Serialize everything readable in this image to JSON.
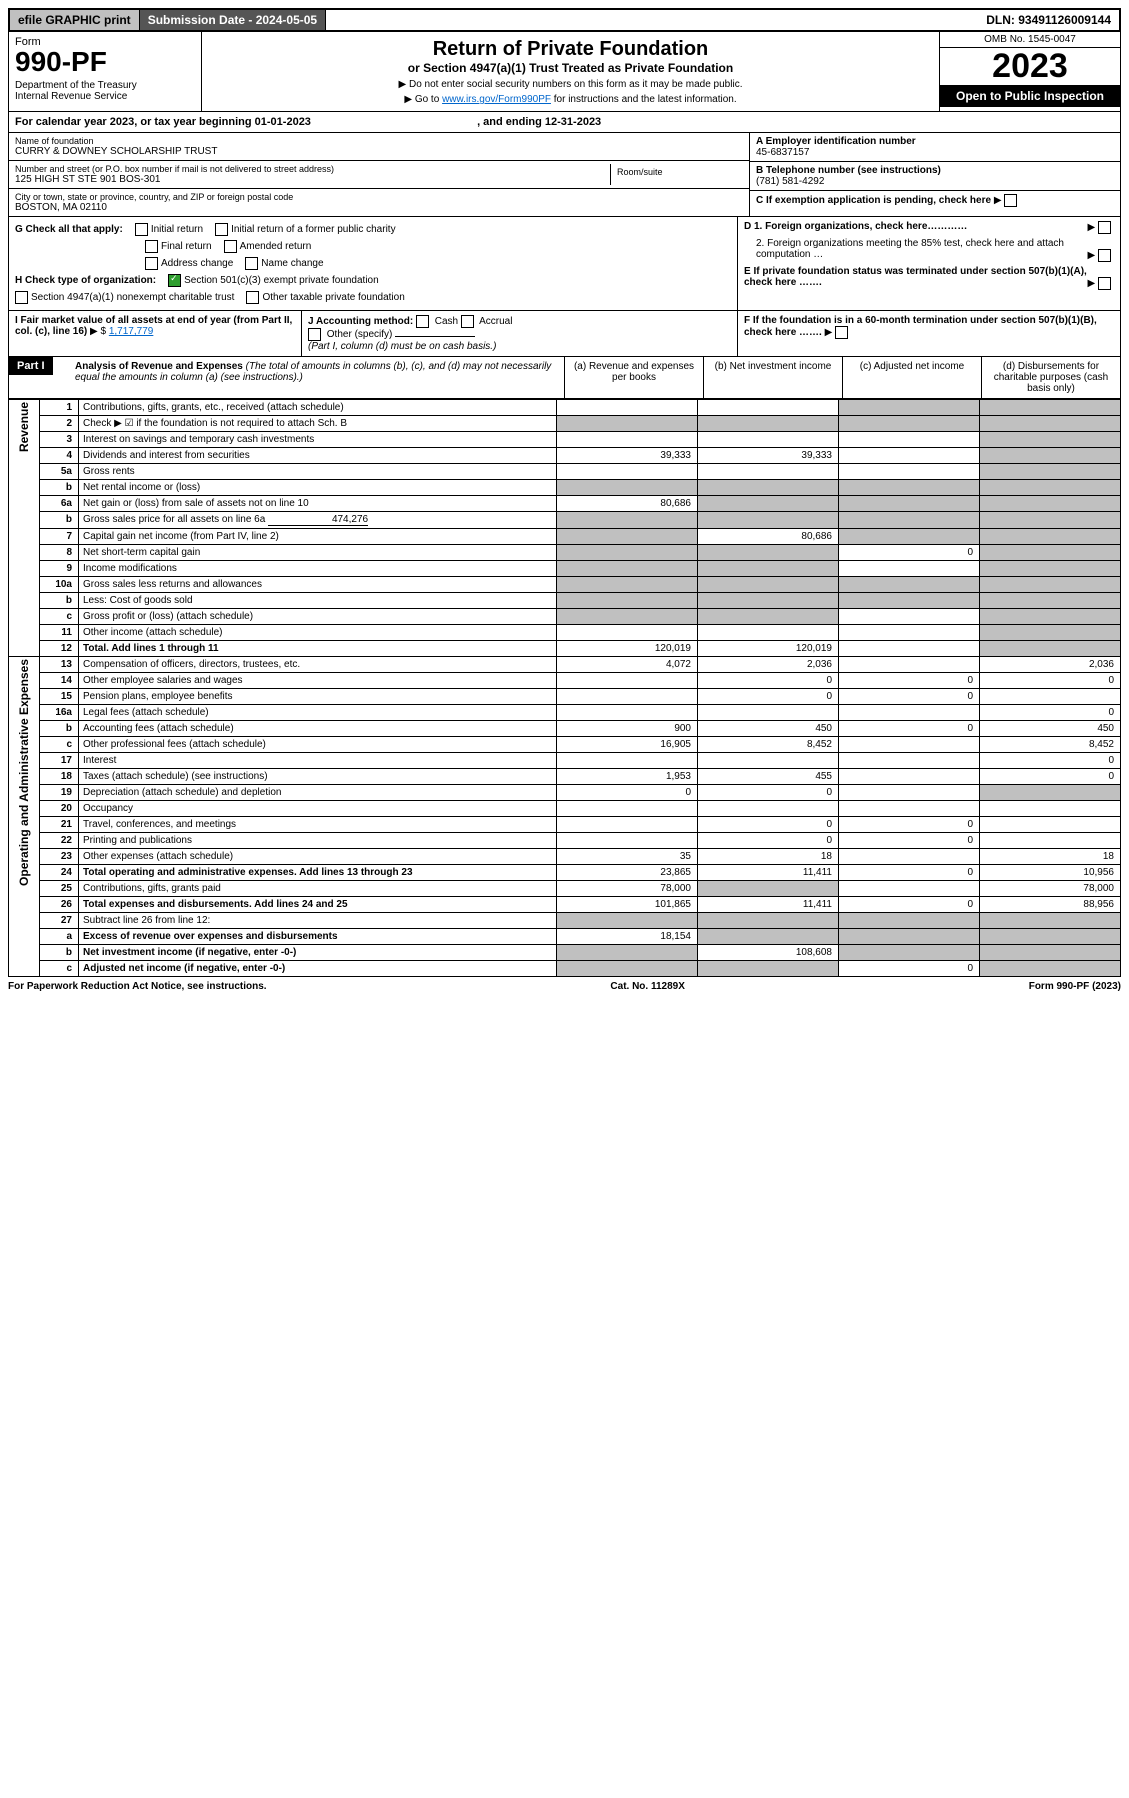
{
  "topbar": {
    "efile": "efile GRAPHIC print",
    "submission_label": "Submission Date - 2024-05-05",
    "dln": "DLN: 93491126009144"
  },
  "header": {
    "form_label": "Form",
    "form_no": "990-PF",
    "dept": "Department of the Treasury\nInternal Revenue Service",
    "title": "Return of Private Foundation",
    "subtitle": "or Section 4947(a)(1) Trust Treated as Private Foundation",
    "instr1": "▶ Do not enter social security numbers on this form as it may be made public.",
    "instr2_pre": "▶ Go to ",
    "instr2_link": "www.irs.gov/Form990PF",
    "instr2_post": " for instructions and the latest information.",
    "omb": "OMB No. 1545-0047",
    "year": "2023",
    "open": "Open to Public Inspection"
  },
  "calendar": {
    "text_pre": "For calendar year 2023, or tax year beginning ",
    "begin": "01-01-2023",
    "text_mid": " , and ending ",
    "end": "12-31-2023"
  },
  "entity": {
    "name_label": "Name of foundation",
    "name": "CURRY & DOWNEY SCHOLARSHIP TRUST",
    "addr_label": "Number and street (or P.O. box number if mail is not delivered to street address)",
    "address": "125 HIGH ST STE 901 BOS-301",
    "room_label": "Room/suite",
    "city_label": "City or town, state or province, country, and ZIP or foreign postal code",
    "city": "BOSTON, MA  02110",
    "ein_label": "A Employer identification number",
    "ein": "45-6837157",
    "phone_label": "B Telephone number (see instructions)",
    "phone": "(781) 581-4292",
    "c_label": "C If exemption application is pending, check here"
  },
  "checks": {
    "g_label": "G Check all that apply:",
    "g_opts": [
      "Initial return",
      "Initial return of a former public charity",
      "Final return",
      "Amended return",
      "Address change",
      "Name change"
    ],
    "h_label": "H Check type of organization:",
    "h_501c3": "Section 501(c)(3) exempt private foundation",
    "h_4947": "Section 4947(a)(1) nonexempt charitable trust",
    "h_other": "Other taxable private foundation",
    "d1": "D 1. Foreign organizations, check here…………",
    "d2": "2. Foreign organizations meeting the 85% test, check here and attach computation …",
    "e": "E  If private foundation status was terminated under section 507(b)(1)(A), check here …….",
    "i_label": "I Fair market value of all assets at end of year (from Part II, col. (c), line 16)",
    "i_value": "1,717,779",
    "j_label": "J Accounting method:",
    "j_cash": "Cash",
    "j_accrual": "Accrual",
    "j_other": "Other (specify)",
    "j_note": "(Part I, column (d) must be on cash basis.)",
    "f_label": "F  If the foundation is in a 60-month termination under section 507(b)(1)(B), check here ……."
  },
  "part1": {
    "hdr": "Part I",
    "title": "Analysis of Revenue and Expenses",
    "title_note": " (The total of amounts in columns (b), (c), and (d) may not necessarily equal the amounts in column (a) (see instructions).)",
    "col_a": "(a)  Revenue and expenses per books",
    "col_b": "(b)  Net investment income",
    "col_c": "(c)  Adjusted net income",
    "col_d": "(d)  Disbursements for charitable purposes (cash basis only)"
  },
  "side_labels": {
    "revenue": "Revenue",
    "opex": "Operating and Administrative Expenses"
  },
  "rows": [
    {
      "no": "1",
      "desc": "Contributions, gifts, grants, etc., received (attach schedule)",
      "a": "",
      "b": "",
      "c": "shade",
      "d": "shade"
    },
    {
      "no": "2",
      "desc": "Check ▶ ☑ if the foundation is not required to attach Sch. B",
      "a": "shade",
      "b": "shade",
      "c": "shade",
      "d": "shade",
      "checked": true
    },
    {
      "no": "3",
      "desc": "Interest on savings and temporary cash investments",
      "a": "",
      "b": "",
      "c": "",
      "d": "shade"
    },
    {
      "no": "4",
      "desc": "Dividends and interest from securities",
      "a": "39,333",
      "b": "39,333",
      "c": "",
      "d": "shade"
    },
    {
      "no": "5a",
      "desc": "Gross rents",
      "a": "",
      "b": "",
      "c": "",
      "d": "shade"
    },
    {
      "no": "b",
      "desc": "Net rental income or (loss)",
      "a": "shade",
      "b": "shade",
      "c": "shade",
      "d": "shade",
      "inline": true
    },
    {
      "no": "6a",
      "desc": "Net gain or (loss) from sale of assets not on line 10",
      "a": "80,686",
      "b": "shade",
      "c": "shade",
      "d": "shade"
    },
    {
      "no": "b",
      "desc": "Gross sales price for all assets on line 6a",
      "a": "shade",
      "b": "shade",
      "c": "shade",
      "d": "shade",
      "inline_val": "474,276"
    },
    {
      "no": "7",
      "desc": "Capital gain net income (from Part IV, line 2)",
      "a": "shade",
      "b": "80,686",
      "c": "shade",
      "d": "shade"
    },
    {
      "no": "8",
      "desc": "Net short-term capital gain",
      "a": "shade",
      "b": "shade",
      "c": "0",
      "d": "shade"
    },
    {
      "no": "9",
      "desc": "Income modifications",
      "a": "shade",
      "b": "shade",
      "c": "",
      "d": "shade"
    },
    {
      "no": "10a",
      "desc": "Gross sales less returns and allowances",
      "a": "shade",
      "b": "shade",
      "c": "shade",
      "d": "shade",
      "inline": true
    },
    {
      "no": "b",
      "desc": "Less: Cost of goods sold",
      "a": "shade",
      "b": "shade",
      "c": "shade",
      "d": "shade",
      "inline": true
    },
    {
      "no": "c",
      "desc": "Gross profit or (loss) (attach schedule)",
      "a": "shade",
      "b": "shade",
      "c": "",
      "d": "shade"
    },
    {
      "no": "11",
      "desc": "Other income (attach schedule)",
      "a": "",
      "b": "",
      "c": "",
      "d": "shade"
    },
    {
      "no": "12",
      "desc": "Total. Add lines 1 through 11",
      "a": "120,019",
      "b": "120,019",
      "c": "",
      "d": "shade",
      "bold": true
    },
    {
      "no": "13",
      "desc": "Compensation of officers, directors, trustees, etc.",
      "a": "4,072",
      "b": "2,036",
      "c": "",
      "d": "2,036"
    },
    {
      "no": "14",
      "desc": "Other employee salaries and wages",
      "a": "",
      "b": "0",
      "c": "0",
      "d": "0"
    },
    {
      "no": "15",
      "desc": "Pension plans, employee benefits",
      "a": "",
      "b": "0",
      "c": "0",
      "d": ""
    },
    {
      "no": "16a",
      "desc": "Legal fees (attach schedule)",
      "a": "",
      "b": "",
      "c": "",
      "d": "0"
    },
    {
      "no": "b",
      "desc": "Accounting fees (attach schedule)",
      "a": "900",
      "b": "450",
      "c": "0",
      "d": "450"
    },
    {
      "no": "c",
      "desc": "Other professional fees (attach schedule)",
      "a": "16,905",
      "b": "8,452",
      "c": "",
      "d": "8,452"
    },
    {
      "no": "17",
      "desc": "Interest",
      "a": "",
      "b": "",
      "c": "",
      "d": "0"
    },
    {
      "no": "18",
      "desc": "Taxes (attach schedule) (see instructions)",
      "a": "1,953",
      "b": "455",
      "c": "",
      "d": "0"
    },
    {
      "no": "19",
      "desc": "Depreciation (attach schedule) and depletion",
      "a": "0",
      "b": "0",
      "c": "",
      "d": "shade"
    },
    {
      "no": "20",
      "desc": "Occupancy",
      "a": "",
      "b": "",
      "c": "",
      "d": ""
    },
    {
      "no": "21",
      "desc": "Travel, conferences, and meetings",
      "a": "",
      "b": "0",
      "c": "0",
      "d": ""
    },
    {
      "no": "22",
      "desc": "Printing and publications",
      "a": "",
      "b": "0",
      "c": "0",
      "d": ""
    },
    {
      "no": "23",
      "desc": "Other expenses (attach schedule)",
      "a": "35",
      "b": "18",
      "c": "",
      "d": "18"
    },
    {
      "no": "24",
      "desc": "Total operating and administrative expenses. Add lines 13 through 23",
      "a": "23,865",
      "b": "11,411",
      "c": "0",
      "d": "10,956",
      "bold": true
    },
    {
      "no": "25",
      "desc": "Contributions, gifts, grants paid",
      "a": "78,000",
      "b": "shade",
      "c": "",
      "d": "78,000"
    },
    {
      "no": "26",
      "desc": "Total expenses and disbursements. Add lines 24 and 25",
      "a": "101,865",
      "b": "11,411",
      "c": "0",
      "d": "88,956",
      "bold": true
    },
    {
      "no": "27",
      "desc": "Subtract line 26 from line 12:",
      "a": "shade",
      "b": "shade",
      "c": "shade",
      "d": "shade"
    },
    {
      "no": "a",
      "desc": "Excess of revenue over expenses and disbursements",
      "a": "18,154",
      "b": "shade",
      "c": "shade",
      "d": "shade",
      "bold": true
    },
    {
      "no": "b",
      "desc": "Net investment income (if negative, enter -0-)",
      "a": "shade",
      "b": "108,608",
      "c": "shade",
      "d": "shade",
      "bold": true
    },
    {
      "no": "c",
      "desc": "Adjusted net income (if negative, enter -0-)",
      "a": "shade",
      "b": "shade",
      "c": "0",
      "d": "shade",
      "bold": true
    }
  ],
  "footer": {
    "left": "For Paperwork Reduction Act Notice, see instructions.",
    "mid": "Cat. No. 11289X",
    "right": "Form 990-PF (2023)"
  }
}
